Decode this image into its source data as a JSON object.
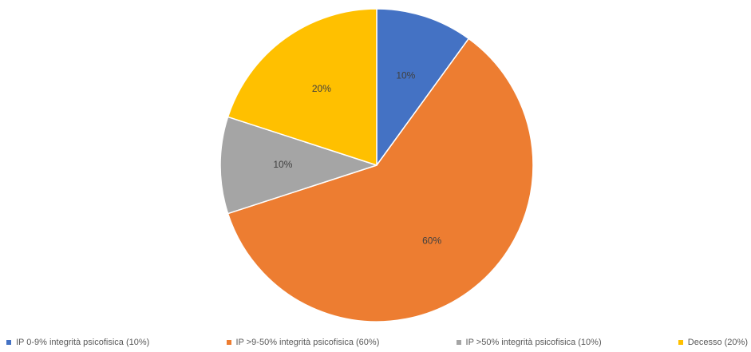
{
  "chart_data": {
    "type": "pie",
    "title": "",
    "start_angle_deg": 0,
    "direction": "clockwise",
    "slices": [
      {
        "label": "IP 0-9% integrità psicofisica",
        "value": 10,
        "data_label": "10%",
        "legend_label": "IP 0-9% integrità psicofisica (10%)",
        "color": "#4472C4"
      },
      {
        "label": "IP >9-50% integrità psicofisica",
        "value": 60,
        "data_label": "60%",
        "legend_label": "IP >9-50% integrità psicofisica (60%)",
        "color": "#ED7D31"
      },
      {
        "label": "IP >50% integrità psicofisica",
        "value": 10,
        "data_label": "10%",
        "legend_label": "IP >50% integrità psicofisica (10%)",
        "color": "#A5A5A5"
      },
      {
        "label": "Decesso",
        "value": 20,
        "data_label": "20%",
        "legend_label": "Decesso (20%)",
        "color": "#FFC000"
      }
    ],
    "legend_position": "bottom",
    "label_color": "#404040",
    "border_color": "#ffffff"
  }
}
